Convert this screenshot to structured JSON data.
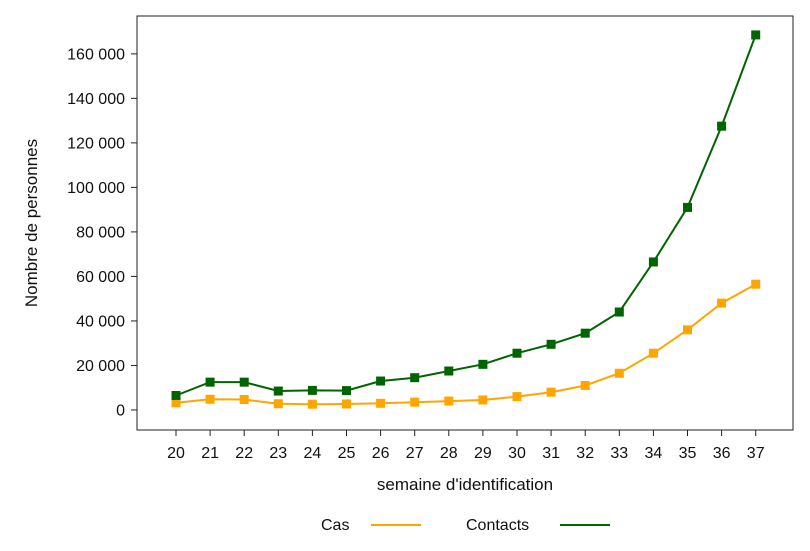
{
  "chart_data": {
    "type": "line",
    "xlabel": "semaine d'identification",
    "ylabel": "Nombre de personnes",
    "categories": [
      "20",
      "21",
      "22",
      "23",
      "24",
      "25",
      "26",
      "27",
      "28",
      "29",
      "30",
      "31",
      "32",
      "33",
      "34",
      "35",
      "36",
      "37"
    ],
    "y_ticks": [
      0,
      20000,
      40000,
      60000,
      80000,
      100000,
      120000,
      140000,
      160000
    ],
    "y_tick_labels": [
      "0",
      "20 000",
      "40 000",
      "60 000",
      "80 000",
      "100 000",
      "120 000",
      "140 000",
      "160 000"
    ],
    "ylim": [
      -9000,
      177000
    ],
    "grid": false,
    "legend_position": "bottom",
    "series": [
      {
        "name": "Cas",
        "color": "#FFA500",
        "values": [
          3200,
          4800,
          4700,
          2800,
          2600,
          2700,
          3000,
          3500,
          4000,
          4500,
          6000,
          8000,
          11000,
          16500,
          25500,
          36000,
          48000,
          56500
        ]
      },
      {
        "name": "Contacts",
        "color": "#006400",
        "values": [
          6500,
          12500,
          12500,
          8500,
          8800,
          8700,
          13000,
          14500,
          17500,
          20500,
          25500,
          29500,
          34500,
          44000,
          66500,
          91000,
          127500,
          168500
        ]
      }
    ]
  }
}
